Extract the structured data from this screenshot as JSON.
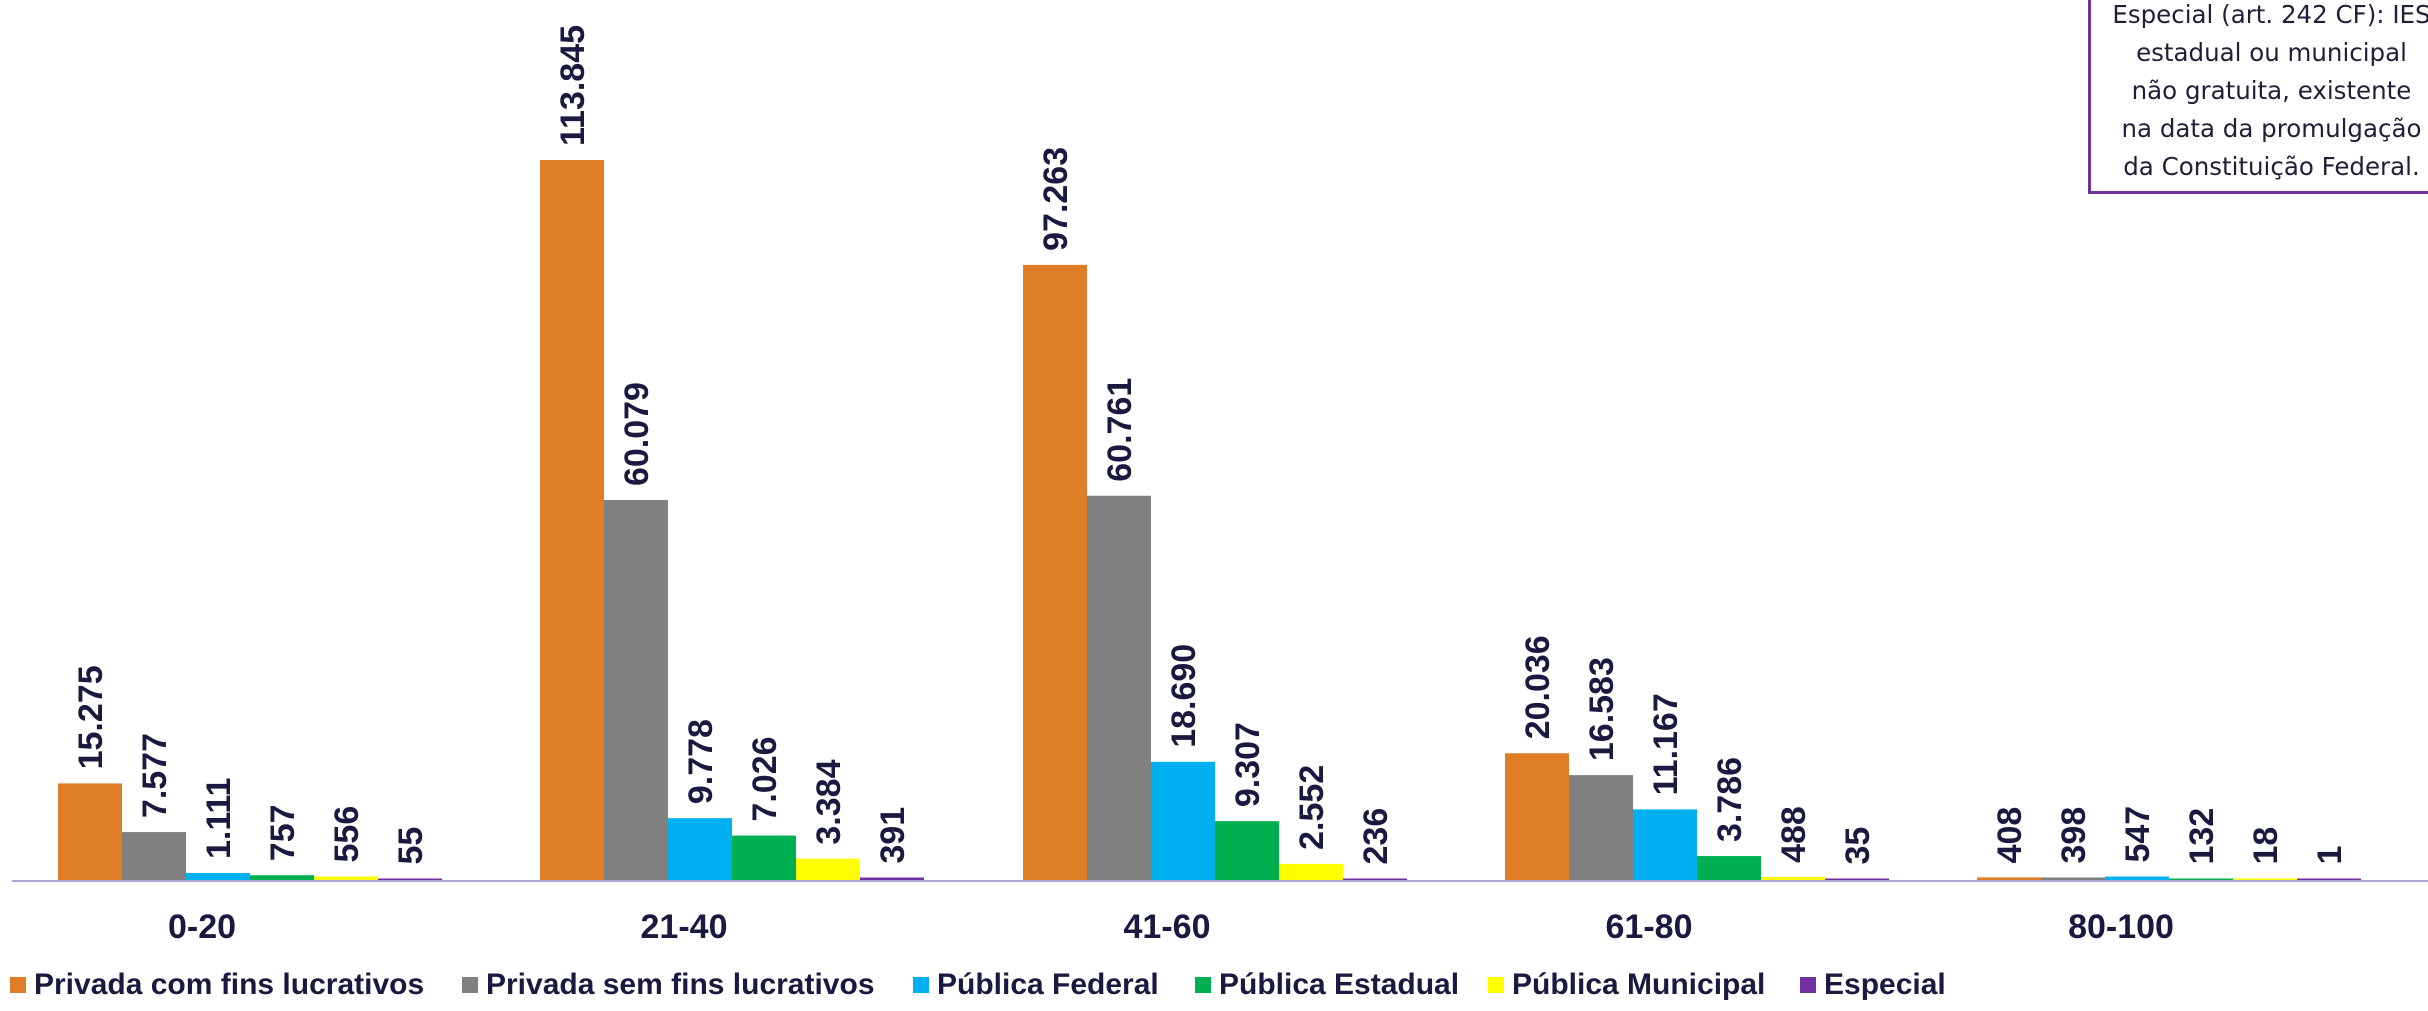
{
  "chart_data": {
    "type": "bar",
    "title": "",
    "xlabel": "",
    "ylabel": "",
    "categories": [
      "0-20",
      "21-40",
      "41-60",
      "61-80",
      "80-100"
    ],
    "series": [
      {
        "name": "Privada com fins lucrativos",
        "color": "#e07d27",
        "values": [
          15275,
          113845,
          97263,
          20036,
          408
        ],
        "labels": [
          "15.275",
          "113.845",
          "97.263",
          "20.036",
          "408"
        ]
      },
      {
        "name": "Privada sem fins lucrativos",
        "color": "#808080",
        "values": [
          7577,
          60079,
          60761,
          16583,
          398
        ],
        "labels": [
          "7.577",
          "60.079",
          "60.761",
          "16.583",
          "398"
        ]
      },
      {
        "name": "Pública Federal",
        "color": "#00b0f0",
        "values": [
          1111,
          9778,
          18690,
          11167,
          547
        ],
        "labels": [
          "1.111",
          "9.778",
          "18.690",
          "11.167",
          "547"
        ]
      },
      {
        "name": "Pública Estadual",
        "color": "#00b050",
        "values": [
          757,
          7026,
          9307,
          3786,
          132
        ],
        "labels": [
          "757",
          "7.026",
          "9.307",
          "3.786",
          "132"
        ]
      },
      {
        "name": "Pública Municipal",
        "color": "#ffff00",
        "values": [
          556,
          3384,
          2552,
          488,
          18
        ],
        "labels": [
          "556",
          "3.384",
          "2.552",
          "488",
          "18"
        ]
      },
      {
        "name": "Especial",
        "color": "#7030a0",
        "values": [
          55,
          391,
          236,
          35,
          1
        ],
        "labels": [
          "55",
          "391",
          "236",
          "35",
          "1"
        ]
      }
    ],
    "legend_position": "bottom",
    "grid": false,
    "label_color": "#1a1a40",
    "axis_color": "#a8a8d0"
  },
  "note": {
    "text": "Especial (art. 242 CF): IES\nestadual ou municipal\nnão gratuita, existente\nna data da promulgação\nda Constituição Federal."
  }
}
